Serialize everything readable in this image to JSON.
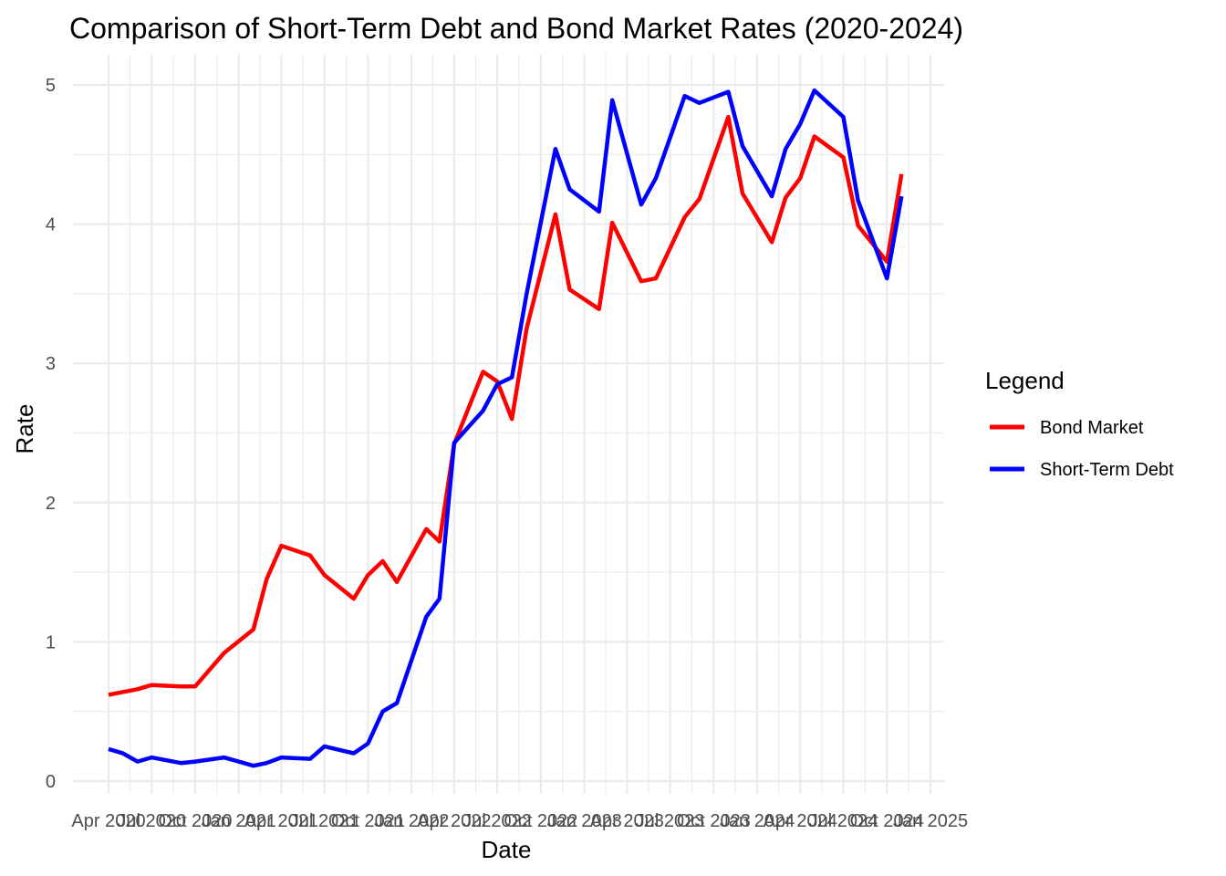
{
  "chart_data": {
    "type": "line",
    "title": "Comparison of Short-Term Debt and Bond Market Rates (2020-2024)",
    "xlabel": "Date",
    "ylabel": "Rate",
    "ylim": [
      0,
      5
    ],
    "y_ticks": [
      "0",
      "1",
      "2",
      "3",
      "4",
      "5"
    ],
    "x_tick_labels": [
      "Apr 2020",
      "Jul 2020",
      "Oct 2020",
      "Jan 2021",
      "Apr 2021",
      "Jul 2021",
      "Oct 2021",
      "Jan 2022",
      "Apr 2022",
      "Jul 2022",
      "Oct 2022",
      "Jan 2023",
      "Apr 2023",
      "Jul 2023",
      "Oct 2023",
      "Jan 2024",
      "Apr 2024",
      "Jul 2024",
      "Oct 2024",
      "Jan 2025"
    ],
    "grid": true,
    "legend": {
      "title": "Legend",
      "position": "right"
    },
    "series": [
      {
        "name": "Bond Market",
        "color": "#ff0000",
        "points": [
          [
            "2020-04-01",
            0.62
          ],
          [
            "2020-06-01",
            0.66
          ],
          [
            "2020-07-01",
            0.69
          ],
          [
            "2020-09-01",
            0.68
          ],
          [
            "2020-10-01",
            0.68
          ],
          [
            "2020-12-01",
            0.92
          ],
          [
            "2021-02-01",
            1.09
          ],
          [
            "2021-03-01",
            1.45
          ],
          [
            "2021-04-01",
            1.69
          ],
          [
            "2021-06-01",
            1.62
          ],
          [
            "2021-07-01",
            1.48
          ],
          [
            "2021-09-01",
            1.31
          ],
          [
            "2021-10-01",
            1.48
          ],
          [
            "2021-11-01",
            1.58
          ],
          [
            "2021-12-01",
            1.43
          ],
          [
            "2022-02-01",
            1.81
          ],
          [
            "2022-03-01",
            1.72
          ],
          [
            "2022-04-01",
            2.42
          ],
          [
            "2022-06-01",
            2.94
          ],
          [
            "2022-07-01",
            2.87
          ],
          [
            "2022-08-01",
            2.6
          ],
          [
            "2022-09-01",
            3.25
          ],
          [
            "2022-11-01",
            4.07
          ],
          [
            "2022-12-01",
            3.53
          ],
          [
            "2023-02-01",
            3.39
          ],
          [
            "2023-03-01",
            4.01
          ],
          [
            "2023-05-01",
            3.59
          ],
          [
            "2023-06-01",
            3.61
          ],
          [
            "2023-08-01",
            4.05
          ],
          [
            "2023-09-01",
            4.18
          ],
          [
            "2023-11-01",
            4.77
          ],
          [
            "2023-12-01",
            4.22
          ],
          [
            "2024-02-01",
            3.87
          ],
          [
            "2024-03-01",
            4.19
          ],
          [
            "2024-04-01",
            4.33
          ],
          [
            "2024-05-01",
            4.63
          ],
          [
            "2024-07-01",
            4.48
          ],
          [
            "2024-08-01",
            3.99
          ],
          [
            "2024-10-01",
            3.73
          ],
          [
            "2024-11-01",
            4.36
          ]
        ]
      },
      {
        "name": "Short-Term Debt",
        "color": "#0000ff",
        "points": [
          [
            "2020-04-01",
            0.23
          ],
          [
            "2020-05-01",
            0.2
          ],
          [
            "2020-06-01",
            0.14
          ],
          [
            "2020-07-01",
            0.17
          ],
          [
            "2020-09-01",
            0.13
          ],
          [
            "2020-10-01",
            0.14
          ],
          [
            "2020-12-01",
            0.17
          ],
          [
            "2021-02-01",
            0.11
          ],
          [
            "2021-03-01",
            0.13
          ],
          [
            "2021-04-01",
            0.17
          ],
          [
            "2021-06-01",
            0.16
          ],
          [
            "2021-07-01",
            0.25
          ],
          [
            "2021-09-01",
            0.2
          ],
          [
            "2021-10-01",
            0.27
          ],
          [
            "2021-11-01",
            0.5
          ],
          [
            "2021-12-01",
            0.56
          ],
          [
            "2022-02-01",
            1.18
          ],
          [
            "2022-03-01",
            1.31
          ],
          [
            "2022-04-01",
            2.43
          ],
          [
            "2022-06-01",
            2.66
          ],
          [
            "2022-07-01",
            2.85
          ],
          [
            "2022-08-01",
            2.9
          ],
          [
            "2022-09-01",
            3.5
          ],
          [
            "2022-11-01",
            4.54
          ],
          [
            "2022-12-01",
            4.25
          ],
          [
            "2023-02-01",
            4.09
          ],
          [
            "2023-03-01",
            4.89
          ],
          [
            "2023-05-01",
            4.14
          ],
          [
            "2023-06-01",
            4.33
          ],
          [
            "2023-08-01",
            4.92
          ],
          [
            "2023-09-01",
            4.87
          ],
          [
            "2023-11-01",
            4.95
          ],
          [
            "2023-12-01",
            4.56
          ],
          [
            "2024-02-01",
            4.2
          ],
          [
            "2024-03-01",
            4.54
          ],
          [
            "2024-04-01",
            4.72
          ],
          [
            "2024-05-01",
            4.96
          ],
          [
            "2024-07-01",
            4.77
          ],
          [
            "2024-08-01",
            4.17
          ],
          [
            "2024-10-01",
            3.61
          ],
          [
            "2024-11-01",
            4.2
          ]
        ]
      }
    ]
  }
}
